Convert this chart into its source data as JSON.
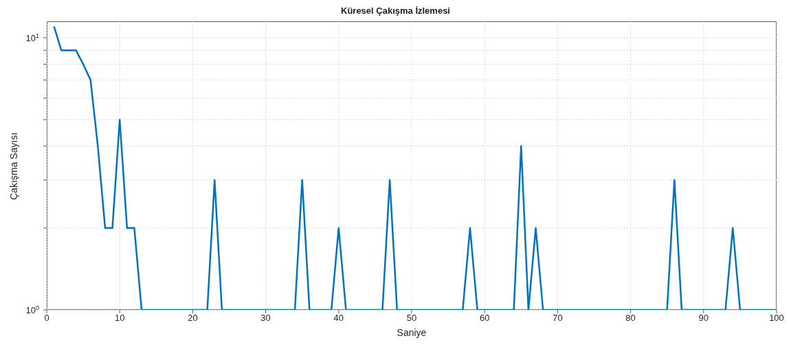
{
  "chart_data": {
    "type": "line",
    "title": "Küresel Çakışma İzlemesi",
    "xlabel": "Saniye",
    "ylabel": "Çakışma Sayısı",
    "x": [
      1,
      2,
      3,
      4,
      5,
      6,
      7,
      8,
      9,
      10,
      11,
      12,
      13,
      14,
      15,
      16,
      17,
      18,
      19,
      20,
      21,
      22,
      23,
      24,
      25,
      26,
      27,
      28,
      29,
      30,
      31,
      32,
      33,
      34,
      35,
      36,
      37,
      38,
      39,
      40,
      41,
      42,
      43,
      44,
      45,
      46,
      47,
      48,
      49,
      50,
      51,
      52,
      53,
      54,
      55,
      56,
      57,
      58,
      59,
      60,
      61,
      62,
      63,
      64,
      65,
      66,
      67,
      68,
      69,
      70,
      71,
      72,
      73,
      74,
      75,
      76,
      77,
      78,
      79,
      80,
      81,
      82,
      83,
      84,
      85,
      86,
      87,
      88,
      89,
      90,
      91,
      92,
      93,
      94,
      95,
      96,
      97,
      98,
      99,
      100
    ],
    "series": [
      {
        "color": "#0072bd",
        "values": [
          11,
          9,
          9,
          9,
          8,
          7,
          4,
          2,
          2,
          5,
          2,
          2,
          1,
          1,
          1,
          1,
          1,
          1,
          1,
          1,
          1,
          1,
          3,
          1,
          1,
          1,
          1,
          1,
          1,
          1,
          1,
          1,
          1,
          1,
          3,
          1,
          1,
          1,
          1,
          2,
          1,
          1,
          1,
          1,
          1,
          1,
          3,
          1,
          1,
          1,
          1,
          1,
          1,
          1,
          1,
          1,
          1,
          2,
          1,
          1,
          1,
          1,
          1,
          1,
          4,
          1,
          2,
          1,
          1,
          1,
          1,
          1,
          1,
          1,
          1,
          1,
          1,
          1,
          1,
          1,
          1,
          1,
          1,
          1,
          1,
          3,
          1,
          1,
          1,
          1,
          1,
          1,
          1,
          2,
          1,
          1,
          1,
          1,
          1,
          1
        ]
      }
    ],
    "xlim": [
      0,
      100
    ],
    "xticks": [
      0,
      10,
      20,
      30,
      40,
      50,
      60,
      70,
      80,
      90,
      100
    ],
    "ylim": [
      1,
      11.5
    ],
    "yticks": [
      {
        "value": 1,
        "label": "10$^{0}$"
      },
      {
        "value": 2,
        "label": null
      },
      {
        "value": 3,
        "label": null
      },
      {
        "value": 4,
        "label": null
      },
      {
        "value": 5,
        "label": null
      },
      {
        "value": 6,
        "label": null
      },
      {
        "value": 7,
        "label": null
      },
      {
        "value": 8,
        "label": null
      },
      {
        "value": 9,
        "label": null
      },
      {
        "value": 10,
        "label": "10$^{1}$"
      }
    ],
    "log": "y",
    "grid": true,
    "marker": "none",
    "line_style": "solid"
  }
}
